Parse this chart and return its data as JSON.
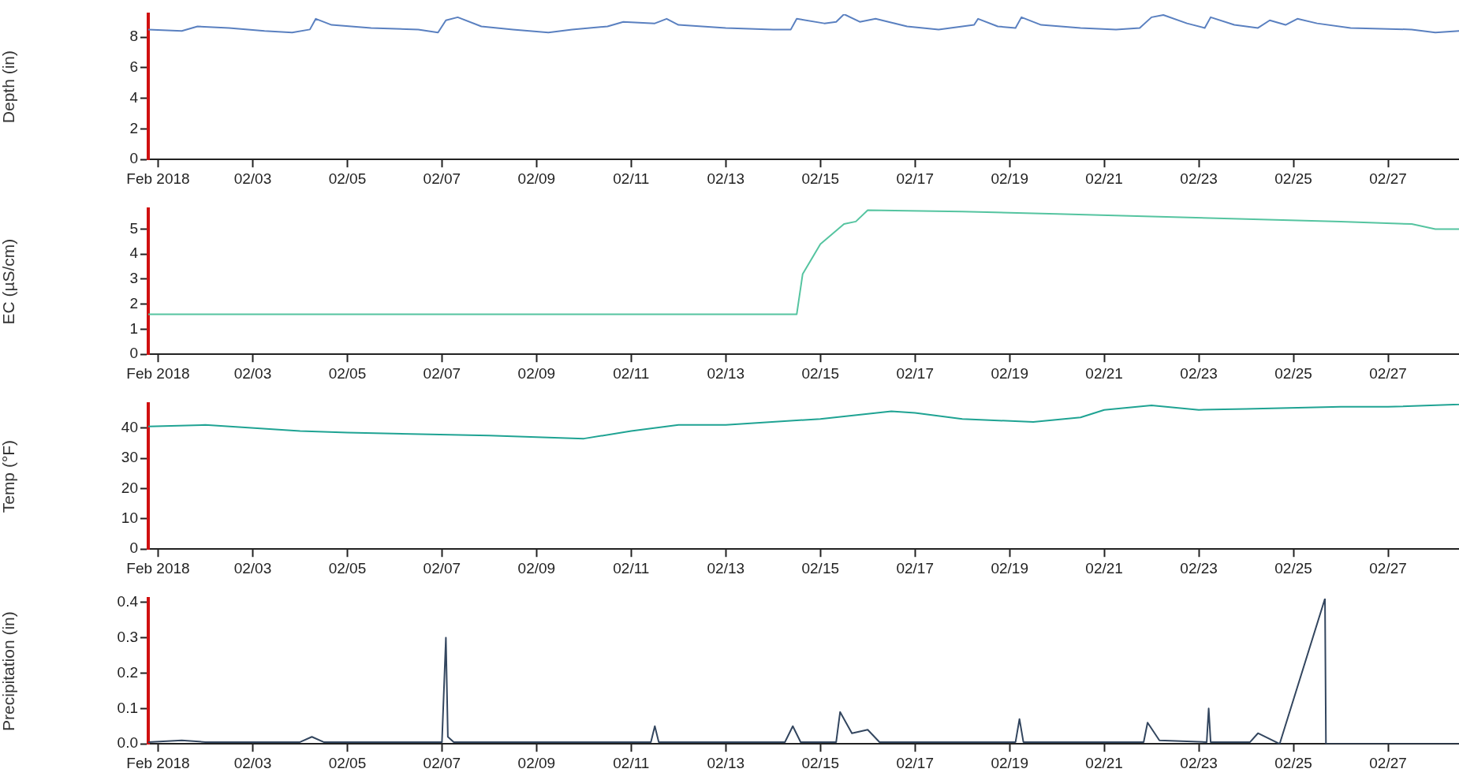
{
  "chart_data": [
    {
      "type": "line",
      "ylabel": "Depth (in)",
      "xlim": [
        "2018-01-31T19:00",
        "2018-02-28T12:00"
      ],
      "xticks": [
        {
          "value": "2018-02-01",
          "label": "Feb 2018"
        },
        {
          "value": "2018-02-03",
          "label": "02/03"
        },
        {
          "value": "2018-02-05",
          "label": "02/05"
        },
        {
          "value": "2018-02-07",
          "label": "02/07"
        },
        {
          "value": "2018-02-09",
          "label": "02/09"
        },
        {
          "value": "2018-02-11",
          "label": "02/11"
        },
        {
          "value": "2018-02-13",
          "label": "02/13"
        },
        {
          "value": "2018-02-15",
          "label": "02/15"
        },
        {
          "value": "2018-02-17",
          "label": "02/17"
        },
        {
          "value": "2018-02-19",
          "label": "02/19"
        },
        {
          "value": "2018-02-21",
          "label": "02/21"
        },
        {
          "value": "2018-02-23",
          "label": "02/23"
        },
        {
          "value": "2018-02-25",
          "label": "02/25"
        },
        {
          "value": "2018-02-27",
          "label": "02/27"
        }
      ],
      "ylim": [
        0,
        9.5
      ],
      "yticks": [
        0,
        2,
        4,
        6,
        8
      ],
      "grid": false,
      "marker": "none",
      "line_style": "solid",
      "x": [
        "2018-01-31T19:00",
        "2018-02-01T12:00",
        "2018-02-01T20:00",
        "2018-02-02T12:00",
        "2018-02-03T06:00",
        "2018-02-03T20:00",
        "2018-02-04T05:00",
        "2018-02-04T08:00",
        "2018-02-04T16:00",
        "2018-02-05T12:00",
        "2018-02-06T12:00",
        "2018-02-06T22:00",
        "2018-02-07T02:00",
        "2018-02-07T08:00",
        "2018-02-07T20:00",
        "2018-02-08T12:00",
        "2018-02-09T06:00",
        "2018-02-09T18:00",
        "2018-02-10T12:00",
        "2018-02-10T20:00",
        "2018-02-11T12:00",
        "2018-02-11T18:00",
        "2018-02-12T00:00",
        "2018-02-13T00:00",
        "2018-02-14T00:00",
        "2018-02-14T09:00",
        "2018-02-14T12:00",
        "2018-02-15T02:00",
        "2018-02-15T08:00",
        "2018-02-15T12:00",
        "2018-02-15T20:00",
        "2018-02-16T04:00",
        "2018-02-16T20:00",
        "2018-02-17T12:00",
        "2018-02-18T06:00",
        "2018-02-18T08:00",
        "2018-02-18T18:00",
        "2018-02-19T03:00",
        "2018-02-19T06:00",
        "2018-02-19T16:00",
        "2018-02-20T12:00",
        "2018-02-21T06:00",
        "2018-02-21T18:00",
        "2018-02-22T00:00",
        "2018-02-22T06:00",
        "2018-02-22T18:00",
        "2018-02-23T03:00",
        "2018-02-23T06:00",
        "2018-02-23T18:00",
        "2018-02-24T06:00",
        "2018-02-24T12:00",
        "2018-02-24T20:00",
        "2018-02-25T02:00",
        "2018-02-25T12:00",
        "2018-02-26T05:00",
        "2018-02-27T12:00",
        "2018-02-28T00:00",
        "2018-02-28T12:00"
      ],
      "series": [
        {
          "color": "#5a80c0",
          "values": [
            8.5,
            8.4,
            8.7,
            8.6,
            8.4,
            8.3,
            8.5,
            9.2,
            8.8,
            8.6,
            8.5,
            8.3,
            9.1,
            9.3,
            8.7,
            8.5,
            8.3,
            8.5,
            8.7,
            9.0,
            8.9,
            9.2,
            8.8,
            8.6,
            8.5,
            8.5,
            9.2,
            8.9,
            9.0,
            9.5,
            9.0,
            9.2,
            8.7,
            8.5,
            8.8,
            9.2,
            8.7,
            8.6,
            9.3,
            8.8,
            8.6,
            8.5,
            8.6,
            9.3,
            9.45,
            8.9,
            8.6,
            9.3,
            8.8,
            8.6,
            9.1,
            8.8,
            9.2,
            8.9,
            8.6,
            8.5,
            8.3,
            8.4
          ]
        }
      ]
    },
    {
      "type": "line",
      "ylabel": "EC (µS/cm)",
      "xlim": [
        "2018-01-31T19:00",
        "2018-02-28T12:00"
      ],
      "xticks": [
        {
          "value": "2018-02-01",
          "label": "Feb 2018"
        },
        {
          "value": "2018-02-03",
          "label": "02/03"
        },
        {
          "value": "2018-02-05",
          "label": "02/05"
        },
        {
          "value": "2018-02-07",
          "label": "02/07"
        },
        {
          "value": "2018-02-09",
          "label": "02/09"
        },
        {
          "value": "2018-02-11",
          "label": "02/11"
        },
        {
          "value": "2018-02-13",
          "label": "02/13"
        },
        {
          "value": "2018-02-15",
          "label": "02/15"
        },
        {
          "value": "2018-02-17",
          "label": "02/17"
        },
        {
          "value": "2018-02-19",
          "label": "02/19"
        },
        {
          "value": "2018-02-21",
          "label": "02/21"
        },
        {
          "value": "2018-02-23",
          "label": "02/23"
        },
        {
          "value": "2018-02-25",
          "label": "02/25"
        },
        {
          "value": "2018-02-27",
          "label": "02/27"
        }
      ],
      "ylim": [
        0,
        5.8
      ],
      "yticks": [
        0,
        1,
        2,
        3,
        4,
        5
      ],
      "grid": false,
      "marker": "none",
      "line_style": "solid",
      "x": [
        "2018-01-31T19:00",
        "2018-02-03T00:00",
        "2018-02-07T00:00",
        "2018-02-11T00:00",
        "2018-02-14T12:00",
        "2018-02-14T15:00",
        "2018-02-15T00:00",
        "2018-02-15T12:00",
        "2018-02-15T18:00",
        "2018-02-16T00:00",
        "2018-02-18T00:00",
        "2018-02-20T00:00",
        "2018-02-22T00:00",
        "2018-02-24T00:00",
        "2018-02-26T00:00",
        "2018-02-27T12:00",
        "2018-02-28T00:00",
        "2018-02-28T12:00"
      ],
      "series": [
        {
          "color": "#55c4a0",
          "values": [
            1.6,
            1.6,
            1.6,
            1.6,
            1.6,
            3.2,
            4.4,
            5.2,
            5.3,
            5.75,
            5.7,
            5.6,
            5.5,
            5.4,
            5.3,
            5.2,
            5.0,
            5.0
          ]
        }
      ]
    },
    {
      "type": "line",
      "ylabel": "Temp (°F)",
      "xlim": [
        "2018-01-31T19:00",
        "2018-02-28T12:00"
      ],
      "xticks": [
        {
          "value": "2018-02-01",
          "label": "Feb 2018"
        },
        {
          "value": "2018-02-03",
          "label": "02/03"
        },
        {
          "value": "2018-02-05",
          "label": "02/05"
        },
        {
          "value": "2018-02-07",
          "label": "02/07"
        },
        {
          "value": "2018-02-09",
          "label": "02/09"
        },
        {
          "value": "2018-02-11",
          "label": "02/11"
        },
        {
          "value": "2018-02-13",
          "label": "02/13"
        },
        {
          "value": "2018-02-15",
          "label": "02/15"
        },
        {
          "value": "2018-02-17",
          "label": "02/17"
        },
        {
          "value": "2018-02-19",
          "label": "02/19"
        },
        {
          "value": "2018-02-21",
          "label": "02/21"
        },
        {
          "value": "2018-02-23",
          "label": "02/23"
        },
        {
          "value": "2018-02-25",
          "label": "02/25"
        },
        {
          "value": "2018-02-27",
          "label": "02/27"
        }
      ],
      "ylim": [
        0,
        48
      ],
      "yticks": [
        0,
        10,
        20,
        30,
        40
      ],
      "grid": false,
      "marker": "none",
      "line_style": "solid",
      "x": [
        "2018-01-31T19:00",
        "2018-02-02T00:00",
        "2018-02-04T00:00",
        "2018-02-05T00:00",
        "2018-02-08T00:00",
        "2018-02-10T00:00",
        "2018-02-11T00:00",
        "2018-02-12T00:00",
        "2018-02-13T00:00",
        "2018-02-15T00:00",
        "2018-02-16T12:00",
        "2018-02-17T00:00",
        "2018-02-18T00:00",
        "2018-02-19T12:00",
        "2018-02-20T12:00",
        "2018-02-21T00:00",
        "2018-02-22T00:00",
        "2018-02-23T00:00",
        "2018-02-24T00:00",
        "2018-02-26T00:00",
        "2018-02-27T00:00",
        "2018-02-28T12:00"
      ],
      "series": [
        {
          "color": "#1fa393",
          "values": [
            40.5,
            41,
            39,
            38.5,
            37.5,
            36.5,
            39,
            41,
            41,
            43,
            45.5,
            45,
            43,
            42,
            43.5,
            46,
            47.5,
            46,
            46.3,
            47,
            47,
            47.8
          ]
        }
      ]
    },
    {
      "type": "line",
      "ylabel": "Precipitation (in)",
      "xlim": [
        "2018-01-31T19:00",
        "2018-02-28T12:00"
      ],
      "xticks": [
        {
          "value": "2018-02-01",
          "label": "Feb 2018"
        },
        {
          "value": "2018-02-03",
          "label": "02/03"
        },
        {
          "value": "2018-02-05",
          "label": "02/05"
        },
        {
          "value": "2018-02-07",
          "label": "02/07"
        },
        {
          "value": "2018-02-09",
          "label": "02/09"
        },
        {
          "value": "2018-02-11",
          "label": "02/11"
        },
        {
          "value": "2018-02-13",
          "label": "02/13"
        },
        {
          "value": "2018-02-15",
          "label": "02/15"
        },
        {
          "value": "2018-02-17",
          "label": "02/17"
        },
        {
          "value": "2018-02-19",
          "label": "02/19"
        },
        {
          "value": "2018-02-21",
          "label": "02/21"
        },
        {
          "value": "2018-02-23",
          "label": "02/23"
        },
        {
          "value": "2018-02-25",
          "label": "02/25"
        },
        {
          "value": "2018-02-27",
          "label": "02/27"
        }
      ],
      "ylim": [
        0,
        0.41
      ],
      "yticks": [
        {
          "value": 0,
          "label": "0.0"
        },
        0.1,
        0.2,
        0.3,
        0.4
      ],
      "grid": false,
      "marker": "none",
      "line_style": "solid",
      "x": [
        "2018-01-31T19:00",
        "2018-02-01T12:00",
        "2018-02-02T00:00",
        "2018-02-04T00:00",
        "2018-02-04T06:00",
        "2018-02-04T12:00",
        "2018-02-07T00:00",
        "2018-02-07T02:00",
        "2018-02-07T03:00",
        "2018-02-07T06:00",
        "2018-02-09T00:00",
        "2018-02-11T10:00",
        "2018-02-11T12:00",
        "2018-02-11T14:00",
        "2018-02-14T06:00",
        "2018-02-14T10:00",
        "2018-02-14T14:00",
        "2018-02-15T08:00",
        "2018-02-15T10:00",
        "2018-02-15T16:00",
        "2018-02-16T00:00",
        "2018-02-16T06:00",
        "2018-02-17T00:00",
        "2018-02-19T03:00",
        "2018-02-19T05:00",
        "2018-02-19T07:00",
        "2018-02-21T20:00",
        "2018-02-21T22:00",
        "2018-02-22T04:00",
        "2018-02-23T04:00",
        "2018-02-23T05:00",
        "2018-02-23T06:00",
        "2018-02-24T02:00",
        "2018-02-24T06:00",
        "2018-02-24T17:00",
        "2018-02-25T16:00",
        "2018-02-25T16:30",
        "2018-02-28T12:00"
      ],
      "series": [
        {
          "color": "#33465f",
          "values": [
            0.005,
            0.01,
            0.005,
            0.005,
            0.02,
            0.005,
            0.005,
            0.3,
            0.02,
            0.005,
            0.005,
            0.005,
            0.05,
            0.005,
            0.005,
            0.05,
            0.005,
            0.005,
            0.09,
            0.03,
            0.04,
            0.005,
            0.005,
            0.005,
            0.07,
            0.005,
            0.005,
            0.06,
            0.01,
            0.005,
            0.1,
            0.005,
            0.005,
            0.03,
            0,
            0.41,
            0,
            0
          ]
        }
      ]
    }
  ]
}
